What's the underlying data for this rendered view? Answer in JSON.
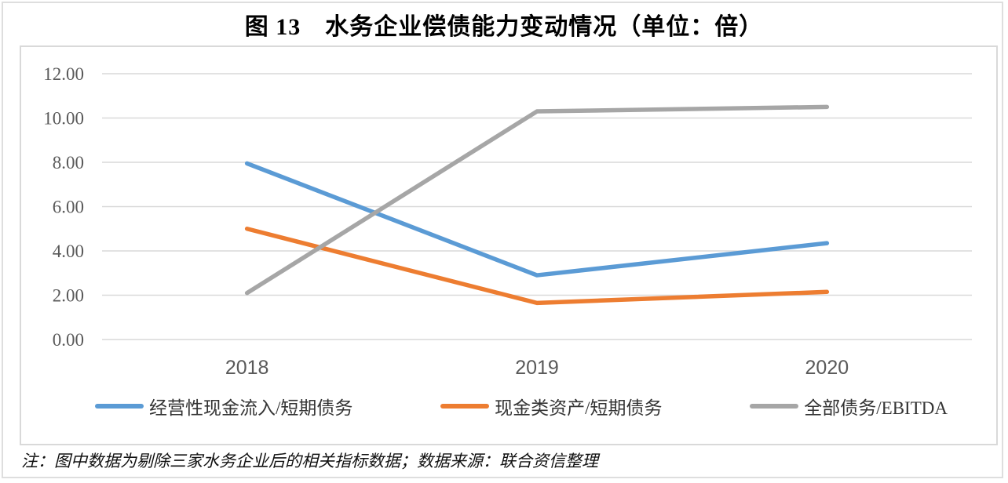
{
  "page": {
    "title": "图 13　水务企业偿债能力变动情况（单位：倍）",
    "note": "注：图中数据为剔除三家水务企业后的相关指标数据；数据来源：联合资信整理"
  },
  "colors": {
    "series_blue": "#5B9BD5",
    "series_orange": "#ED7D31",
    "series_gray": "#A6A6A6",
    "gridline": "#D9D9D9",
    "axis_text": "#595959",
    "chart_border": "#D9D9D9"
  },
  "chart_data": {
    "type": "line",
    "title": "图 13　水务企业偿债能力变动情况（单位：倍）",
    "unit": "倍",
    "categories": [
      "2018",
      "2019",
      "2020"
    ],
    "series": [
      {
        "name": "经营性现金流入/短期债务",
        "color": "#5B9BD5",
        "values": [
          7.95,
          2.9,
          4.35
        ]
      },
      {
        "name": "现金类资产/短期债务",
        "color": "#ED7D31",
        "values": [
          5.0,
          1.65,
          2.15
        ]
      },
      {
        "name": "全部债务/EBITDA",
        "color": "#A6A6A6",
        "values": [
          2.1,
          10.3,
          10.5
        ]
      }
    ],
    "xlabel": "",
    "ylabel": "",
    "ylim": [
      0,
      12
    ],
    "y_tick_step": 2,
    "y_ticks": [
      "12.00",
      "10.00",
      "8.00",
      "6.00",
      "4.00",
      "2.00",
      "0.00"
    ],
    "grid": true,
    "legend_position": "bottom"
  }
}
